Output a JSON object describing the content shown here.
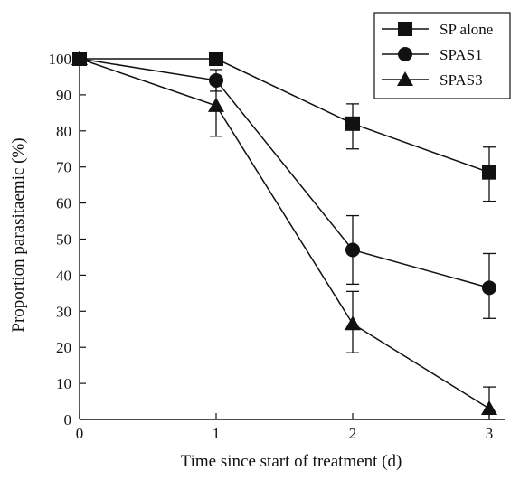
{
  "chart_data": {
    "type": "line",
    "title": "",
    "xlabel": "Time since start of treatment (d)",
    "ylabel": "Proportion parasitaemic (%)",
    "x": [
      0,
      1,
      2,
      3
    ],
    "xlim": [
      0,
      3
    ],
    "ylim": [
      0,
      100
    ],
    "xticks": [
      "0",
      "1",
      "2",
      "3"
    ],
    "yticks": [
      "0",
      "10",
      "20",
      "30",
      "40",
      "50",
      "60",
      "70",
      "80",
      "90",
      "100"
    ],
    "grid": false,
    "legend_position": "top-right",
    "series": [
      {
        "name": "SP alone",
        "marker": "square",
        "values": [
          100,
          100,
          82,
          68.5
        ],
        "err_low": [
          null,
          null,
          75,
          60.5
        ],
        "err_high": [
          null,
          null,
          87.5,
          75.5
        ]
      },
      {
        "name": "SPAS1",
        "marker": "circle",
        "values": [
          100,
          94,
          47,
          36.5
        ],
        "err_low": [
          null,
          91,
          37.5,
          28
        ],
        "err_high": [
          null,
          97,
          56.5,
          46
        ]
      },
      {
        "name": "SPAS3",
        "marker": "triangle",
        "values": [
          100,
          87,
          26.5,
          3
        ],
        "err_low": [
          null,
          78.5,
          18.5,
          0
        ],
        "err_high": [
          null,
          94.5,
          35.5,
          9
        ]
      }
    ]
  }
}
